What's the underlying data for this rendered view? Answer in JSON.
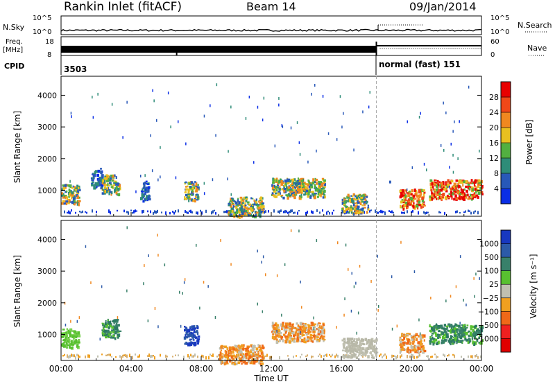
{
  "header": {
    "station": "Rankin Inlet (fitACF)",
    "beam": "Beam 14",
    "date": "09/Jan/2014"
  },
  "panels": {
    "nsky": {
      "left_label": "N.Sky",
      "left_ticks": [
        "10^5",
        "10^0"
      ],
      "right_label": "N.Search",
      "right_ticks": [
        "10^5",
        "10^0"
      ]
    },
    "freq": {
      "left_label_1": "Freq.",
      "left_label_2": "[MHz]",
      "left_ticks": [
        "18",
        "8"
      ],
      "right_label": "Nave",
      "right_ticks": [
        "60",
        "0"
      ]
    },
    "cpid": {
      "label": "CPID",
      "segments": [
        {
          "label": "3503",
          "start_hour": 0
        },
        {
          "label": "normal (fast) 151",
          "start_hour": 18
        }
      ]
    }
  },
  "chart_data": [
    {
      "type": "heatmap",
      "name": "power-panel",
      "ylabel": "Slant Range [km]",
      "xlabel": "",
      "x_ticks": [
        "00:00",
        "04:00",
        "08:00",
        "12:00",
        "16:00",
        "20:00",
        "00:00"
      ],
      "x_tick_hours": [
        0,
        4,
        8,
        12,
        16,
        20,
        24
      ],
      "xlim": [
        0,
        24
      ],
      "y_ticks": [
        1000,
        2000,
        3000,
        4000
      ],
      "ylim": [
        180,
        4600
      ],
      "colorbar": {
        "label": "Power [dB]",
        "ticks": [
          "4",
          "8",
          "12",
          "16",
          "20",
          "24",
          "28"
        ],
        "colors": [
          "#0a2ee6",
          "#2858b8",
          "#2e8c78",
          "#52b040",
          "#e8c020",
          "#f08820",
          "#f04818",
          "#e80000"
        ]
      },
      "features": [
        {
          "hour_start": 0.0,
          "hour_end": 1.0,
          "range_km": 900,
          "level": "mid"
        },
        {
          "hour_start": 1.7,
          "hour_end": 2.3,
          "range_km": 1400,
          "level": "low"
        },
        {
          "hour_start": 2.3,
          "hour_end": 3.3,
          "range_km": 1200,
          "level": "mid"
        },
        {
          "hour_start": 4.5,
          "hour_end": 5.0,
          "range_km": 1000,
          "level": "low"
        },
        {
          "hour_start": 7.0,
          "hour_end": 7.8,
          "range_km": 1000,
          "level": "mid"
        },
        {
          "hour_start": 9.5,
          "hour_end": 11.5,
          "range_km": 500,
          "level": "mid"
        },
        {
          "hour_start": 12.0,
          "hour_end": 15.0,
          "range_km": 1100,
          "level": "mid"
        },
        {
          "hour_start": 16.0,
          "hour_end": 17.5,
          "range_km": 600,
          "level": "mid"
        },
        {
          "hour_start": 19.3,
          "hour_end": 20.7,
          "range_km": 750,
          "level": "high"
        },
        {
          "hour_start": 21.0,
          "hour_end": 24.0,
          "range_km": 1050,
          "level": "high"
        }
      ]
    },
    {
      "type": "heatmap",
      "name": "velocity-panel",
      "ylabel": "Slant Range [km]",
      "xlabel": "Time UT",
      "x_ticks": [
        "00:00",
        "04:00",
        "08:00",
        "12:00",
        "16:00",
        "20:00",
        "00:00"
      ],
      "x_tick_hours": [
        0,
        4,
        8,
        12,
        16,
        20,
        24
      ],
      "xlim": [
        0,
        24
      ],
      "y_ticks": [
        1000,
        2000,
        3000,
        4000
      ],
      "ylim": [
        180,
        4600
      ],
      "colorbar": {
        "label": "Velocity [m s⁻¹]",
        "ticks": [
          "1000",
          "500",
          "100",
          "25",
          "−25",
          "−100",
          "−500",
          "−1000"
        ],
        "colors": [
          "#1838c0",
          "#2c5aa8",
          "#38806a",
          "#58c030",
          "#c0c0b0",
          "#f0a020",
          "#f06818",
          "#f02020",
          "#e00000"
        ]
      },
      "features": [
        {
          "hour_start": 0.0,
          "hour_end": 1.0,
          "range_km": 900,
          "level": "light-green"
        },
        {
          "hour_start": 2.3,
          "hour_end": 3.3,
          "range_km": 1200,
          "level": "teal"
        },
        {
          "hour_start": 7.0,
          "hour_end": 7.8,
          "range_km": 1000,
          "level": "blue"
        },
        {
          "hour_start": 9.0,
          "hour_end": 11.5,
          "range_km": 400,
          "level": "orange"
        },
        {
          "hour_start": 12.0,
          "hour_end": 15.0,
          "range_km": 1100,
          "level": "orange"
        },
        {
          "hour_start": 16.0,
          "hour_end": 18.0,
          "range_km": 600,
          "level": "grey"
        },
        {
          "hour_start": 19.3,
          "hour_end": 20.7,
          "range_km": 750,
          "level": "orange"
        },
        {
          "hour_start": 21.0,
          "hour_end": 24.0,
          "range_km": 1050,
          "level": "teal"
        }
      ]
    }
  ]
}
